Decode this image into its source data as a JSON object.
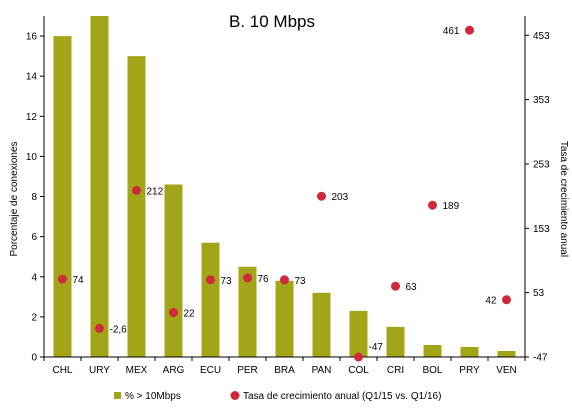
{
  "chart_data": {
    "type": "bar",
    "title": "B. 10 Mbps",
    "categories": [
      "CHL",
      "URY",
      "MEX",
      "ARG",
      "ECU",
      "PER",
      "BRA",
      "PAN",
      "COL",
      "CRI",
      "BOL",
      "PRY",
      "VEN"
    ],
    "series": [
      {
        "name": "% > 10Mbps",
        "type": "bar",
        "axis": "left",
        "color": "#a3a518",
        "values": [
          16.0,
          17.0,
          15.0,
          8.6,
          5.7,
          4.5,
          3.8,
          3.2,
          2.3,
          1.5,
          0.6,
          0.5,
          0.3
        ]
      },
      {
        "name": "Tasa de crecimiento anual (Q1/15 vs. Q1/16)",
        "type": "scatter",
        "axis": "right",
        "color": "#d0293c",
        "values": [
          74,
          -2.6,
          212,
          22,
          73,
          76,
          73,
          203,
          -47,
          63,
          189,
          461,
          42
        ],
        "labels": [
          "74",
          "-2,6",
          "212",
          "22",
          "73",
          "76",
          "73",
          "203",
          "-47",
          "63",
          "189",
          "461",
          "42"
        ]
      }
    ],
    "ylabel": "Porcentaje de conexiones",
    "y2label": "Tasa de crecimiento anual",
    "ylim": [
      0,
      17
    ],
    "y2lim": [
      -47,
      483
    ],
    "yticks": [
      0,
      2,
      4,
      6,
      8,
      10,
      12,
      14,
      16
    ],
    "y2ticks": [
      -47,
      53,
      153,
      253,
      353,
      453
    ],
    "legend_position": "bottom",
    "grid": false
  }
}
